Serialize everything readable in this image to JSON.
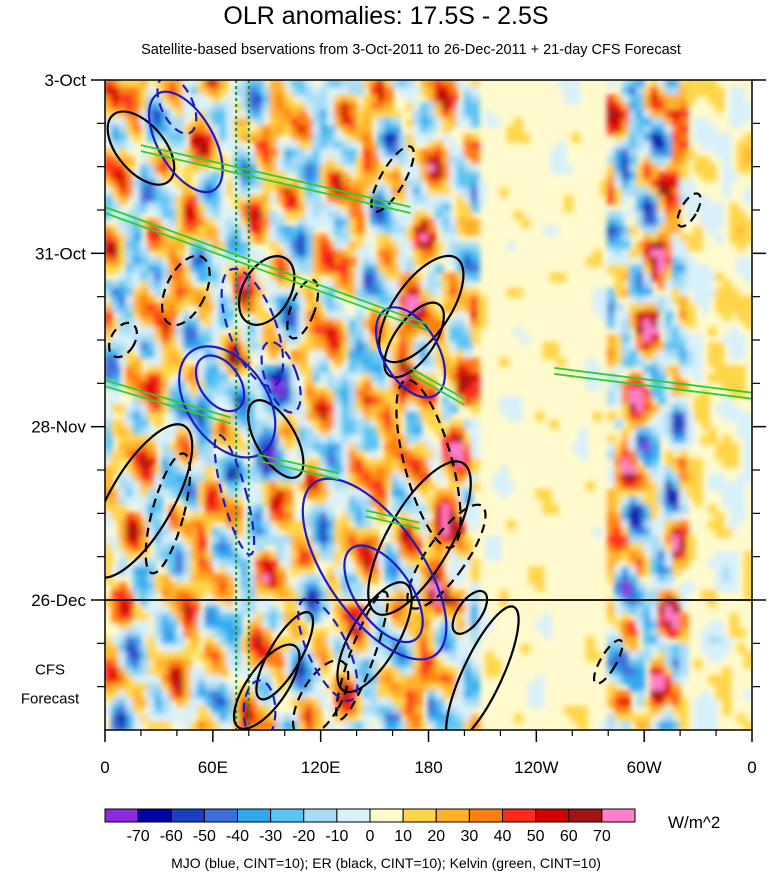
{
  "chart_data": {
    "type": "heatmap",
    "title": "OLR anomalies: 17.5S - 2.5S",
    "subtitle": "Satellite-based bservations from 3-Oct-2011 to 26-Dec-2011 + 21-day CFS Forecast",
    "x_ticks": [
      {
        "label": "0",
        "lon": 0
      },
      {
        "label": "60E",
        "lon": 60
      },
      {
        "label": "120E",
        "lon": 120
      },
      {
        "label": "180",
        "lon": 180
      },
      {
        "label": "120W",
        "lon": 240
      },
      {
        "label": "60W",
        "lon": 300
      },
      {
        "label": "0",
        "lon": 360
      }
    ],
    "x_range": [
      0,
      360
    ],
    "y_ticks": [
      {
        "label": "3-Oct",
        "day": 0
      },
      {
        "label": "31-Oct",
        "day": 28
      },
      {
        "label": "28-Nov",
        "day": 56
      },
      {
        "label": "26-Dec",
        "day": 84
      }
    ],
    "y_range_days": [
      0,
      105
    ],
    "observation_end_day": 84,
    "forecast_label_1": "CFS",
    "forecast_label_2": "Forecast",
    "colorbar": {
      "levels": [
        "-70",
        "-60",
        "-50",
        "-40",
        "-30",
        "-20",
        "-10",
        "0",
        "10",
        "20",
        "30",
        "40",
        "50",
        "60",
        "70"
      ],
      "colors": [
        "#8a2be2",
        "#0000a8",
        "#1a3fbf",
        "#3c6fd9",
        "#2fa8ee",
        "#5cc4f2",
        "#a8dcf5",
        "#d8f0fa",
        "#fffacd",
        "#ffd54a",
        "#ffb229",
        "#ff7f0e",
        "#ff2a1a",
        "#d40000",
        "#a31414",
        "#ff7fc8"
      ],
      "units": "W/m^2"
    },
    "contour_legend": "MJO (blue, CINT=10); ER (black, CINT=10); Kelvin (green, CINT=10)",
    "reference_longitudes": [
      73,
      80
    ],
    "mjo_contours": [
      {
        "lon": 45,
        "day": 10,
        "rlon": 7,
        "rday": 9,
        "angle": -30,
        "neg": false
      },
      {
        "lon": 40,
        "day": 4,
        "rlon": 4,
        "rday": 5,
        "angle": -25,
        "neg": true
      },
      {
        "lon": 68,
        "day": 52,
        "rlon": 10,
        "rday": 10,
        "angle": -35,
        "neg": false
      },
      {
        "lon": 64,
        "day": 49,
        "rlon": 5,
        "rday": 5,
        "angle": -35,
        "neg": false
      },
      {
        "lon": 82,
        "day": 40,
        "rlon": 6,
        "rday": 10,
        "angle": -20,
        "neg": true
      },
      {
        "lon": 98,
        "day": 48,
        "rlon": 4,
        "rday": 6,
        "angle": -20,
        "neg": true
      },
      {
        "lon": 150,
        "day": 79,
        "rlon": 12,
        "rday": 17,
        "angle": -35,
        "neg": false
      },
      {
        "lon": 155,
        "day": 83,
        "rlon": 7,
        "rday": 9,
        "angle": -35,
        "neg": false
      },
      {
        "lon": 72,
        "day": 67,
        "rlon": 3,
        "rday": 10,
        "angle": -15,
        "neg": true
      },
      {
        "lon": 124,
        "day": 92,
        "rlon": 5,
        "rday": 9,
        "angle": -25,
        "neg": true
      },
      {
        "lon": 86,
        "day": 102,
        "rlon": 4,
        "rday": 5,
        "angle": 0,
        "neg": true
      },
      {
        "lon": 170,
        "day": 44,
        "rlon": 7,
        "rday": 8,
        "angle": -30,
        "neg": false
      }
    ],
    "er_contours": [
      {
        "lon": 20,
        "day": 11,
        "rlon": 6,
        "rday": 7,
        "angle": -40,
        "neg": false
      },
      {
        "lon": 160,
        "day": 16,
        "rlon": 3,
        "rday": 6,
        "angle": 30,
        "neg": true
      },
      {
        "lon": 176,
        "day": 37,
        "rlon": 7,
        "rday": 10,
        "angle": 35,
        "neg": false
      },
      {
        "lon": 172,
        "day": 42,
        "rlon": 5,
        "rday": 7,
        "angle": 35,
        "neg": false
      },
      {
        "lon": 90,
        "day": 34,
        "rlon": 6,
        "rday": 6,
        "angle": 30,
        "neg": false
      },
      {
        "lon": 110,
        "day": 37,
        "rlon": 3,
        "rday": 5,
        "angle": 20,
        "neg": true
      },
      {
        "lon": 45,
        "day": 34,
        "rlon": 5,
        "rday": 6,
        "angle": 25,
        "neg": true
      },
      {
        "lon": 20,
        "day": 68,
        "rlon": 8,
        "rday": 14,
        "angle": 30,
        "neg": false
      },
      {
        "lon": 35,
        "day": 70,
        "rlon": 4,
        "rday": 10,
        "angle": 15,
        "neg": true
      },
      {
        "lon": 95,
        "day": 58,
        "rlon": 5,
        "rday": 7,
        "angle": -30,
        "neg": false
      },
      {
        "lon": 180,
        "day": 62,
        "rlon": 6,
        "rday": 14,
        "angle": -15,
        "neg": true
      },
      {
        "lon": 175,
        "day": 74,
        "rlon": 8,
        "rday": 14,
        "angle": 30,
        "neg": false
      },
      {
        "lon": 190,
        "day": 77,
        "rlon": 5,
        "rday": 10,
        "angle": 35,
        "neg": true
      },
      {
        "lon": 150,
        "day": 90,
        "rlon": 6,
        "rday": 10,
        "angle": 30,
        "neg": false
      },
      {
        "lon": 143,
        "day": 93,
        "rlon": 3,
        "rday": 11,
        "angle": 20,
        "neg": true
      },
      {
        "lon": 210,
        "day": 96,
        "rlon": 5,
        "rday": 12,
        "angle": 25,
        "neg": false
      },
      {
        "lon": 203,
        "day": 86,
        "rlon": 3,
        "rday": 4,
        "angle": 35,
        "neg": false
      },
      {
        "lon": 280,
        "day": 94,
        "rlon": 2,
        "rday": 4,
        "angle": 30,
        "neg": true
      },
      {
        "lon": 325,
        "day": 21,
        "rlon": 2,
        "rday": 3,
        "angle": 30,
        "neg": true
      },
      {
        "lon": 90,
        "day": 98,
        "rlon": 5,
        "rday": 8,
        "angle": 35,
        "neg": false
      },
      {
        "lon": 100,
        "day": 93,
        "rlon": 4,
        "rday": 8,
        "angle": 30,
        "neg": false
      },
      {
        "lon": 120,
        "day": 100,
        "rlon": 5,
        "rday": 7,
        "angle": 30,
        "neg": true
      },
      {
        "lon": 10,
        "day": 42,
        "rlon": 3,
        "rday": 3,
        "angle": 30,
        "neg": true
      }
    ],
    "kelvin_bands": [
      {
        "lon1": 20,
        "day1": 11,
        "lon2": 170,
        "day2": 21
      },
      {
        "lon1": 0,
        "day1": 21,
        "lon2": 180,
        "day2": 40
      },
      {
        "lon1": 0,
        "day1": 49,
        "lon2": 70,
        "day2": 55
      },
      {
        "lon1": 250,
        "day1": 47,
        "lon2": 360,
        "day2": 51
      },
      {
        "lon1": 170,
        "day1": 47,
        "lon2": 200,
        "day2": 52
      },
      {
        "lon1": 85,
        "day1": 61,
        "lon2": 130,
        "day2": 64
      },
      {
        "lon1": 145,
        "day1": 70,
        "lon2": 175,
        "day2": 72
      }
    ]
  }
}
